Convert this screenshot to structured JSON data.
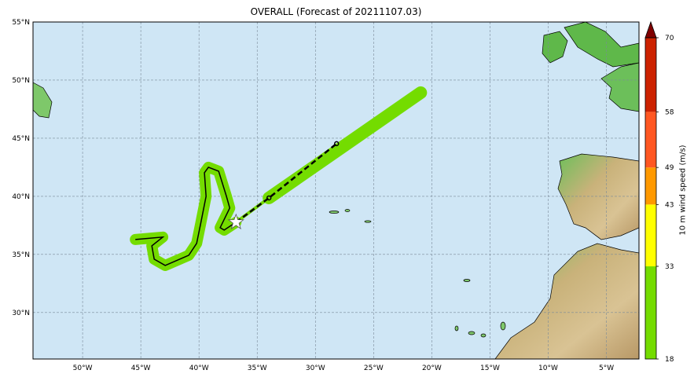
{
  "title": "OVERALL (Forecast of 20211107.03)",
  "map": {
    "lon_range": [
      -54.26,
      -2.2
    ],
    "lat_range": [
      26.0,
      55.0
    ],
    "lon_ticks": [
      {
        "v": -50,
        "label": "50°W"
      },
      {
        "v": -45,
        "label": "45°W"
      },
      {
        "v": -40,
        "label": "40°W"
      },
      {
        "v": -35,
        "label": "35°W"
      },
      {
        "v": -30,
        "label": "30°W"
      },
      {
        "v": -25,
        "label": "25°W"
      },
      {
        "v": -20,
        "label": "20°W"
      },
      {
        "v": -15,
        "label": "15°W"
      },
      {
        "v": -10,
        "label": "10°W"
      },
      {
        "v": -5,
        "label": "5°W"
      }
    ],
    "lat_ticks": [
      {
        "v": 55,
        "label": "55°N"
      },
      {
        "v": 50,
        "label": "50°N"
      },
      {
        "v": 45,
        "label": "45°N"
      },
      {
        "v": 40,
        "label": "40°N"
      },
      {
        "v": 35,
        "label": "35°N"
      },
      {
        "v": 30,
        "label": "30°N"
      }
    ],
    "ocean_color": "#cfe6f5",
    "observed_track": [
      [
        -45.47,
        36.28
      ],
      [
        -43.11,
        36.49
      ],
      [
        -44.05,
        35.74
      ],
      [
        -43.85,
        34.59
      ],
      [
        -42.9,
        34.05
      ],
      [
        -40.88,
        34.93
      ],
      [
        -40.2,
        35.95
      ],
      [
        -39.86,
        37.64
      ],
      [
        -39.39,
        40.0
      ],
      [
        -39.53,
        42.03
      ],
      [
        -39.19,
        42.5
      ],
      [
        -38.31,
        42.16
      ],
      [
        -37.64,
        40.0
      ],
      [
        -37.36,
        38.99
      ],
      [
        -38.18,
        37.3
      ],
      [
        -37.84,
        37.09
      ],
      [
        -36.82,
        37.77
      ]
    ],
    "forecast_track": [
      [
        -36.82,
        37.77
      ],
      [
        -33.99,
        39.86
      ],
      [
        -28.18,
        44.53
      ]
    ],
    "current_position": [
      -36.82,
      37.77
    ],
    "forecast_swath_end": [
      -20.95,
      48.92
    ]
  },
  "colorbar": {
    "label": "10 m wind speed (m/s)",
    "ticks": [
      "70",
      "58",
      "49",
      "43",
      "33",
      "18"
    ],
    "bands": [
      {
        "from": 18,
        "to": 33,
        "color": "#74dc00"
      },
      {
        "from": 33,
        "to": 43,
        "color": "#ffff00"
      },
      {
        "from": 43,
        "to": 49,
        "color": "#ff9900"
      },
      {
        "from": 49,
        "to": 58,
        "color": "#ff5722"
      },
      {
        "from": 58,
        "to": 70,
        "color": "#cc2200"
      }
    ],
    "extend_color": "#800000"
  }
}
